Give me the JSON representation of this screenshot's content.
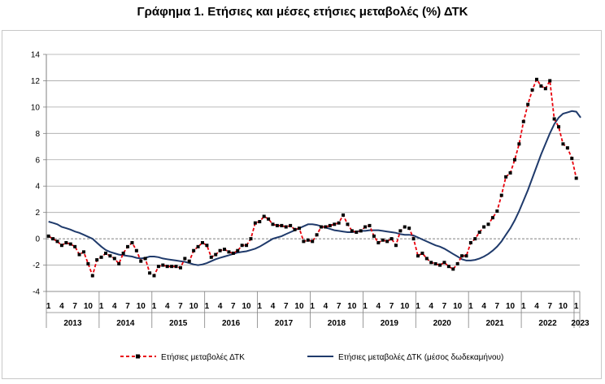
{
  "title": "Γράφημα 1. Ετήσιες και μέσες ετήσιες μεταβολές (%) ΔΤΚ",
  "chart_data": {
    "type": "line",
    "title": "Γράφημα 1. Ετήσιες και μέσες ετήσιες μεταβολές (%) ΔΤΚ",
    "xlabel": "",
    "ylabel": "",
    "ylim": [
      -4,
      14
    ],
    "yticks": [
      "-4",
      "-2",
      "0",
      "2",
      "4",
      "6",
      "8",
      "10",
      "12",
      "14"
    ],
    "month_ticks": [
      "1",
      "4",
      "7",
      "10"
    ],
    "years": [
      "2013",
      "2014",
      "2015",
      "2016",
      "2017",
      "2018",
      "2019",
      "2020",
      "2021",
      "2022",
      "2023"
    ],
    "start": "2013-01",
    "grid": true,
    "legend_position": "bottom",
    "series": [
      {
        "name": "Ετήσιες μεταβολές ΔΤΚ",
        "color": "#e8000b",
        "style": "dashed-markers",
        "values": [
          0.2,
          0.0,
          -0.2,
          -0.5,
          -0.3,
          -0.4,
          -0.6,
          -1.2,
          -1.0,
          -1.9,
          -2.8,
          -1.6,
          -1.4,
          -1.1,
          -1.3,
          -1.5,
          -1.9,
          -1.1,
          -0.6,
          -0.3,
          -0.9,
          -1.7,
          -1.5,
          -2.6,
          -2.8,
          -2.1,
          -2.0,
          -2.1,
          -2.1,
          -2.1,
          -2.2,
          -1.5,
          -1.7,
          -0.9,
          -0.6,
          -0.3,
          -0.5,
          -1.4,
          -1.2,
          -0.9,
          -0.8,
          -1.0,
          -1.1,
          -0.9,
          -0.5,
          -0.5,
          0.0,
          1.2,
          1.3,
          1.7,
          1.5,
          1.1,
          1.0,
          1.0,
          0.9,
          1.0,
          0.7,
          0.8,
          -0.2,
          -0.1,
          -0.2,
          0.3,
          0.9,
          0.9,
          1.0,
          1.1,
          1.2,
          1.8,
          1.1,
          0.6,
          0.5,
          0.6,
          0.9,
          1.0,
          0.2,
          -0.3,
          -0.1,
          -0.2,
          0.0,
          -0.5,
          0.6,
          0.9,
          0.8,
          0.0,
          -1.3,
          -1.1,
          -1.5,
          -1.8,
          -1.9,
          -2.0,
          -1.8,
          -2.1,
          -2.3,
          -1.9,
          -1.3,
          -1.3,
          -0.3,
          0.0,
          0.5,
          0.9,
          1.1,
          1.6,
          2.1,
          3.3,
          4.7,
          5.0,
          6.0,
          7.2,
          8.9,
          10.2,
          11.3,
          12.1,
          11.6,
          11.4,
          12.0,
          9.1,
          8.5,
          7.2,
          6.9,
          6.1,
          4.6
        ]
      },
      {
        "name": "Ετήσιες μεταβολές ΔΤΚ (μέσος δωδεκαμήνου)",
        "color": "#1f3a6b",
        "style": "solid",
        "values": [
          1.3,
          1.2,
          1.1,
          0.9,
          0.8,
          0.7,
          0.55,
          0.45,
          0.3,
          0.15,
          0.0,
          -0.3,
          -0.6,
          -0.85,
          -1.0,
          -1.1,
          -1.2,
          -1.25,
          -1.3,
          -1.35,
          -1.45,
          -1.5,
          -1.45,
          -1.35,
          -1.35,
          -1.4,
          -1.5,
          -1.55,
          -1.6,
          -1.65,
          -1.7,
          -1.75,
          -1.85,
          -1.95,
          -2.0,
          -1.95,
          -1.85,
          -1.7,
          -1.55,
          -1.45,
          -1.35,
          -1.25,
          -1.15,
          -1.05,
          -1.0,
          -0.95,
          -0.85,
          -0.75,
          -0.6,
          -0.4,
          -0.2,
          0.0,
          0.1,
          0.2,
          0.35,
          0.5,
          0.65,
          0.8,
          0.95,
          1.1,
          1.1,
          1.05,
          0.95,
          0.85,
          0.75,
          0.65,
          0.6,
          0.55,
          0.5,
          0.5,
          0.55,
          0.6,
          0.6,
          0.65,
          0.65,
          0.65,
          0.6,
          0.55,
          0.5,
          0.45,
          0.35,
          0.3,
          0.3,
          0.25,
          0.1,
          -0.05,
          -0.2,
          -0.35,
          -0.5,
          -0.6,
          -0.75,
          -0.95,
          -1.15,
          -1.35,
          -1.55,
          -1.65,
          -1.65,
          -1.6,
          -1.5,
          -1.35,
          -1.15,
          -0.9,
          -0.6,
          -0.2,
          0.3,
          0.8,
          1.4,
          2.1,
          2.9,
          3.7,
          4.6,
          5.5,
          6.4,
          7.2,
          8.0,
          8.7,
          9.2,
          9.5,
          9.6,
          9.7,
          9.65,
          9.2
        ]
      }
    ]
  },
  "legend": {
    "series1": "Ετήσιες μεταβολές ΔΤΚ",
    "series2": "Ετήσιες μεταβολές ΔΤΚ (μέσος δωδεκαμήνου)"
  }
}
